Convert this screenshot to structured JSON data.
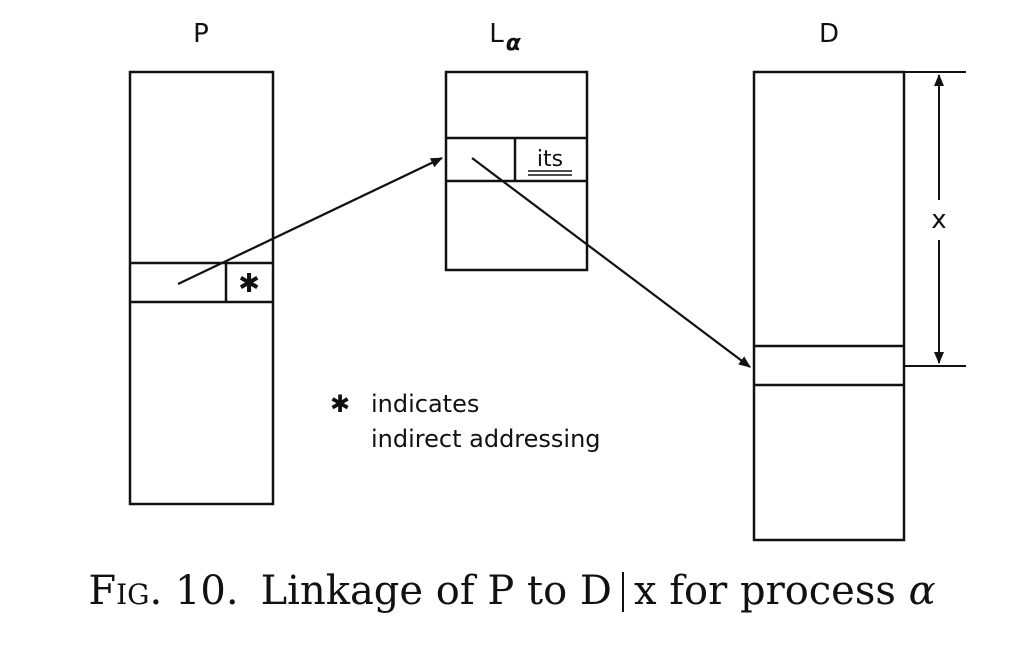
{
  "diagram": {
    "labels": {
      "p": "P",
      "l_base": "L",
      "l_sub": "α",
      "d": "D",
      "its": "its",
      "star": "✱",
      "x": "x"
    },
    "legend": {
      "star": "✱",
      "line1": "indicates",
      "line2": "indirect addressing"
    }
  },
  "caption": {
    "fig": "Fig. 10.",
    "pre": "Linkage of P to D",
    "post": "x for process",
    "symbol": "α"
  }
}
